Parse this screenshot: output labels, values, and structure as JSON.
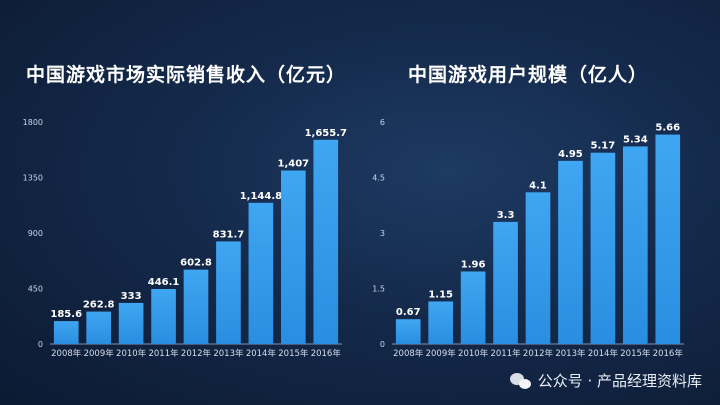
{
  "chart_data": [
    {
      "type": "bar",
      "title": "中国游戏市场实际销售收入（亿元）",
      "categories": [
        "2008年",
        "2009年",
        "2010年",
        "2011年",
        "2012年",
        "2013年",
        "2014年",
        "2015年",
        "2016年"
      ],
      "values": [
        185.6,
        262.8,
        333,
        446.1,
        602.8,
        831.7,
        1144.8,
        1407,
        1655.7
      ],
      "value_labels": [
        "185.6",
        "262.8",
        "333",
        "446.1",
        "602.8",
        "831.7",
        "1,144.8",
        "1,407",
        "1,655.7"
      ],
      "ylim": [
        0,
        1800
      ],
      "yticks": [
        "0",
        "450",
        "900",
        "1350",
        "1800"
      ],
      "xlabel": "",
      "ylabel": "",
      "bar_color": "#2a8ee0"
    },
    {
      "type": "bar",
      "title": "中国游戏用户规模（亿人）",
      "categories": [
        "2008年",
        "2009年",
        "2010年",
        "2011年",
        "2012年",
        "2013年",
        "2014年",
        "2015年",
        "2016年"
      ],
      "values": [
        0.67,
        1.15,
        1.96,
        3.3,
        4.1,
        4.95,
        5.17,
        5.34,
        5.66
      ],
      "value_labels": [
        "0.67",
        "1.15",
        "1.96",
        "3.3",
        "4.1",
        "4.95",
        "5.17",
        "5.34",
        "5.66"
      ],
      "ylim": [
        0,
        6
      ],
      "yticks": [
        "0",
        "1.5",
        "3",
        "4.5",
        "6"
      ],
      "xlabel": "",
      "ylabel": "",
      "bar_color": "#2a8ee0"
    }
  ],
  "watermark": "公众号 · 产品经理资料库"
}
